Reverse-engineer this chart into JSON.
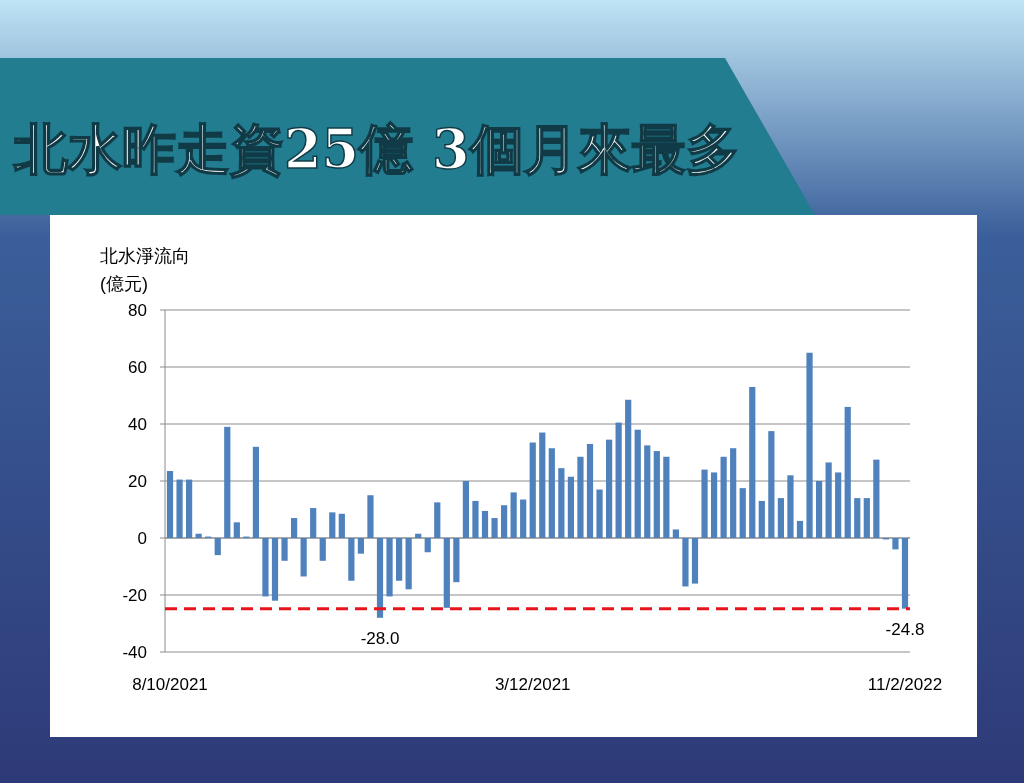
{
  "chart_data": {
    "type": "bar",
    "title": "北水昨走資25億  3個月來最多",
    "ylabel": "北水淨流向\n(億元)",
    "categories": [
      "8/10/2021",
      null,
      null,
      null,
      null,
      null,
      null,
      null,
      null,
      null,
      null,
      null,
      null,
      null,
      null,
      null,
      null,
      null,
      null,
      null,
      null,
      null,
      null,
      null,
      null,
      null,
      null,
      null,
      null,
      null,
      null,
      null,
      null,
      null,
      null,
      null,
      null,
      null,
      "3/12/2021",
      null,
      null,
      null,
      null,
      null,
      null,
      null,
      null,
      null,
      null,
      null,
      null,
      null,
      null,
      null,
      null,
      null,
      null,
      null,
      null,
      null,
      null,
      null,
      null,
      null,
      null,
      null,
      null,
      null,
      null,
      null,
      null,
      null,
      null,
      null,
      null,
      null,
      null,
      "11/2/2022"
    ],
    "values": [
      23.5,
      20.5,
      20.5,
      1.5,
      0.5,
      -6,
      39,
      5.5,
      0.5,
      32,
      -20.5,
      -22,
      -8,
      7,
      -13.5,
      10.5,
      -8,
      9,
      8.5,
      -15,
      -5.5,
      15,
      -28.0,
      -20.5,
      -15,
      -18,
      1.5,
      -5,
      12.5,
      -24.5,
      -15.5,
      20,
      13,
      9.5,
      7,
      11.5,
      16,
      13.5,
      33.5,
      37,
      31.5,
      24.5,
      21.5,
      28.5,
      33,
      17,
      34.5,
      40.5,
      48.5,
      38,
      32.5,
      30.5,
      28.5,
      3,
      -17,
      -16,
      24,
      23,
      28.5,
      31.5,
      17.5,
      53,
      13,
      37.5,
      14,
      22,
      6,
      65,
      20,
      26.5,
      23,
      46,
      14,
      14,
      27.5,
      -0.5,
      -4,
      -24.8
    ],
    "value_labels": [
      null,
      null,
      null,
      null,
      null,
      null,
      null,
      null,
      null,
      null,
      null,
      null,
      null,
      null,
      null,
      null,
      null,
      null,
      null,
      null,
      null,
      null,
      "-28.0",
      null,
      null,
      null,
      null,
      null,
      null,
      null,
      null,
      null,
      null,
      null,
      null,
      null,
      null,
      null,
      null,
      null,
      null,
      null,
      null,
      null,
      null,
      null,
      null,
      null,
      null,
      null,
      null,
      null,
      null,
      null,
      null,
      null,
      null,
      null,
      null,
      null,
      null,
      null,
      null,
      null,
      null,
      null,
      null,
      null,
      null,
      null,
      null,
      null,
      null,
      null,
      null,
      null,
      null,
      "-24.8"
    ],
    "color": "#4f81bd",
    "ylim": [
      -40,
      80
    ],
    "yticks": [
      -40,
      -20,
      0,
      20,
      40,
      60,
      80
    ],
    "grid": "y",
    "ref_lines": [
      {
        "axis": "y",
        "value": -24.8,
        "color": "#e8141c",
        "line_style": "dashed"
      }
    ]
  }
}
